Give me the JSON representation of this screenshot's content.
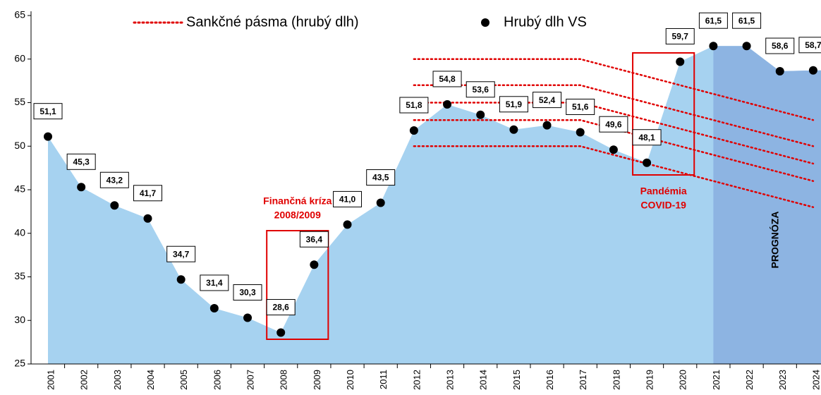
{
  "chart_data": {
    "type": "area",
    "categories": [
      "2001",
      "2002",
      "2003",
      "2004",
      "2005",
      "2006",
      "2007",
      "2008",
      "2009",
      "2010",
      "2011",
      "2012",
      "2013",
      "2014",
      "2015",
      "2016",
      "2017",
      "2018",
      "2019",
      "2020",
      "2021",
      "2022",
      "2023",
      "2024"
    ],
    "series": [
      {
        "name": "Hrubý dlh VS",
        "color": "#a6d2f0",
        "marker_color": "#000000",
        "values": [
          51.1,
          45.3,
          43.2,
          41.7,
          34.7,
          31.4,
          30.3,
          28.6,
          36.4,
          41.0,
          43.5,
          51.8,
          54.8,
          53.6,
          51.9,
          52.4,
          51.6,
          49.6,
          48.1,
          59.7,
          61.5,
          61.5,
          58.6,
          58.7
        ],
        "value_labels": [
          "51,1",
          "45,3",
          "43,2",
          "41,7",
          "34,7",
          "31,4",
          "30,3",
          "28,6",
          "36,4",
          "41,0",
          "43,5",
          "51,8",
          "54,8",
          "53,6",
          "51,9",
          "52,4",
          "51,6",
          "49,6",
          "48,1",
          "59,7",
          "61,5",
          "61,5",
          "58,6",
          "58,7"
        ]
      }
    ],
    "sanction_bands": {
      "name": "Sankčné pásma (hrubý dlh)",
      "color": "#e00000",
      "lines": [
        [
          null,
          null,
          null,
          null,
          null,
          null,
          null,
          null,
          null,
          null,
          null,
          60,
          60,
          60,
          60,
          60,
          60,
          59,
          58,
          57,
          56,
          55,
          54,
          53
        ],
        [
          null,
          null,
          null,
          null,
          null,
          null,
          null,
          null,
          null,
          null,
          null,
          57,
          57,
          57,
          57,
          57,
          57,
          56,
          55,
          54,
          53,
          52,
          51,
          50
        ],
        [
          null,
          null,
          null,
          null,
          null,
          null,
          null,
          null,
          null,
          null,
          null,
          55,
          55,
          55,
          55,
          55,
          55,
          54,
          53,
          52,
          51,
          50,
          49,
          48
        ],
        [
          null,
          null,
          null,
          null,
          null,
          null,
          null,
          null,
          null,
          null,
          null,
          53,
          53,
          53,
          53,
          53,
          53,
          52,
          51,
          50,
          49,
          48,
          47,
          46
        ],
        [
          null,
          null,
          null,
          null,
          null,
          null,
          null,
          null,
          null,
          null,
          null,
          50,
          50,
          50,
          50,
          50,
          50,
          49,
          48,
          47,
          46,
          45,
          44,
          43
        ]
      ]
    },
    "forecast": {
      "from": "2021",
      "label": "PROGNÓZA",
      "color": "#8db4e2"
    },
    "annotations": [
      {
        "lines": [
          "Finančná kríza",
          "2008/2009"
        ],
        "from": "2008",
        "to": "2009"
      },
      {
        "lines": [
          "Pandémia",
          "COVID-19"
        ],
        "from": "2019",
        "to": "2020"
      }
    ],
    "ylim": [
      25,
      65
    ],
    "yticks": [
      25,
      30,
      35,
      40,
      45,
      50,
      55,
      60,
      65
    ],
    "grid": false
  }
}
